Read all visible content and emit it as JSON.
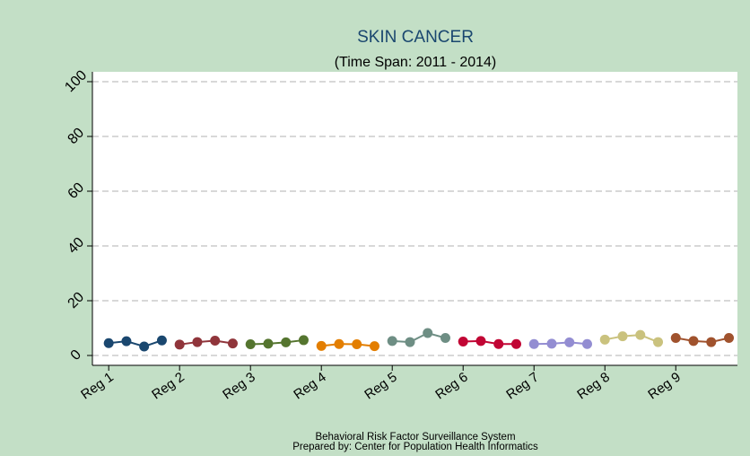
{
  "chart_data": {
    "type": "line",
    "title": "SKIN CANCER",
    "subtitle": "(Time Span: 2011 - 2014)",
    "footnotes": [
      "Behavioral Risk Factor Surveillance System",
      "Prepared by: Center for Population Health Informatics"
    ],
    "series": [
      {
        "color": "#1a476f",
        "x": [
          1,
          1.25,
          1.5,
          1.75
        ],
        "values": [
          4.5,
          5.2,
          3.3,
          5.5
        ]
      },
      {
        "color": "#90353b",
        "x": [
          2,
          2.25,
          2.5,
          2.75
        ],
        "values": [
          4.0,
          4.9,
          5.4,
          4.4
        ]
      },
      {
        "color": "#55752f",
        "x": [
          3,
          3.25,
          3.5,
          3.75
        ],
        "values": [
          4.1,
          4.3,
          4.8,
          5.6
        ]
      },
      {
        "color": "#e37e00",
        "x": [
          4,
          4.25,
          4.5,
          4.75
        ],
        "values": [
          3.5,
          4.2,
          4.1,
          3.4
        ]
      },
      {
        "color": "#6e8e84",
        "x": [
          5,
          5.25,
          5.5,
          5.75
        ],
        "values": [
          5.3,
          4.9,
          8.2,
          6.4
        ]
      },
      {
        "color": "#c10534",
        "x": [
          6,
          6.25,
          6.5,
          6.75
        ],
        "values": [
          5.1,
          5.3,
          4.2,
          4.2
        ]
      },
      {
        "color": "#938dd2",
        "x": [
          7,
          7.25,
          7.5,
          7.75
        ],
        "values": [
          4.2,
          4.3,
          4.8,
          4.2
        ]
      },
      {
        "color": "#cac27e",
        "x": [
          8,
          8.25,
          8.5,
          8.75
        ],
        "values": [
          5.8,
          7.0,
          7.5,
          4.9
        ]
      },
      {
        "color": "#a0522d",
        "x": [
          9,
          9.25,
          9.5,
          9.75
        ],
        "values": [
          6.4,
          5.3,
          4.9,
          6.4
        ]
      }
    ],
    "xlim": [
      0.77,
      9.87
    ],
    "xticks": [
      {
        "value": 1,
        "label": "Reg 1"
      },
      {
        "value": 2,
        "label": "Reg 2"
      },
      {
        "value": 3,
        "label": "Reg 3"
      },
      {
        "value": 4,
        "label": "Reg 4"
      },
      {
        "value": 5,
        "label": "Reg 5"
      },
      {
        "value": 6,
        "label": "Reg 6"
      },
      {
        "value": 7,
        "label": "Reg 7"
      },
      {
        "value": 8,
        "label": "Reg 8"
      },
      {
        "value": 9,
        "label": "Reg 9"
      }
    ],
    "ylim": [
      -3.6,
      103.6
    ],
    "yticks": [
      0,
      20,
      40,
      60,
      80,
      100
    ],
    "grid": true
  }
}
